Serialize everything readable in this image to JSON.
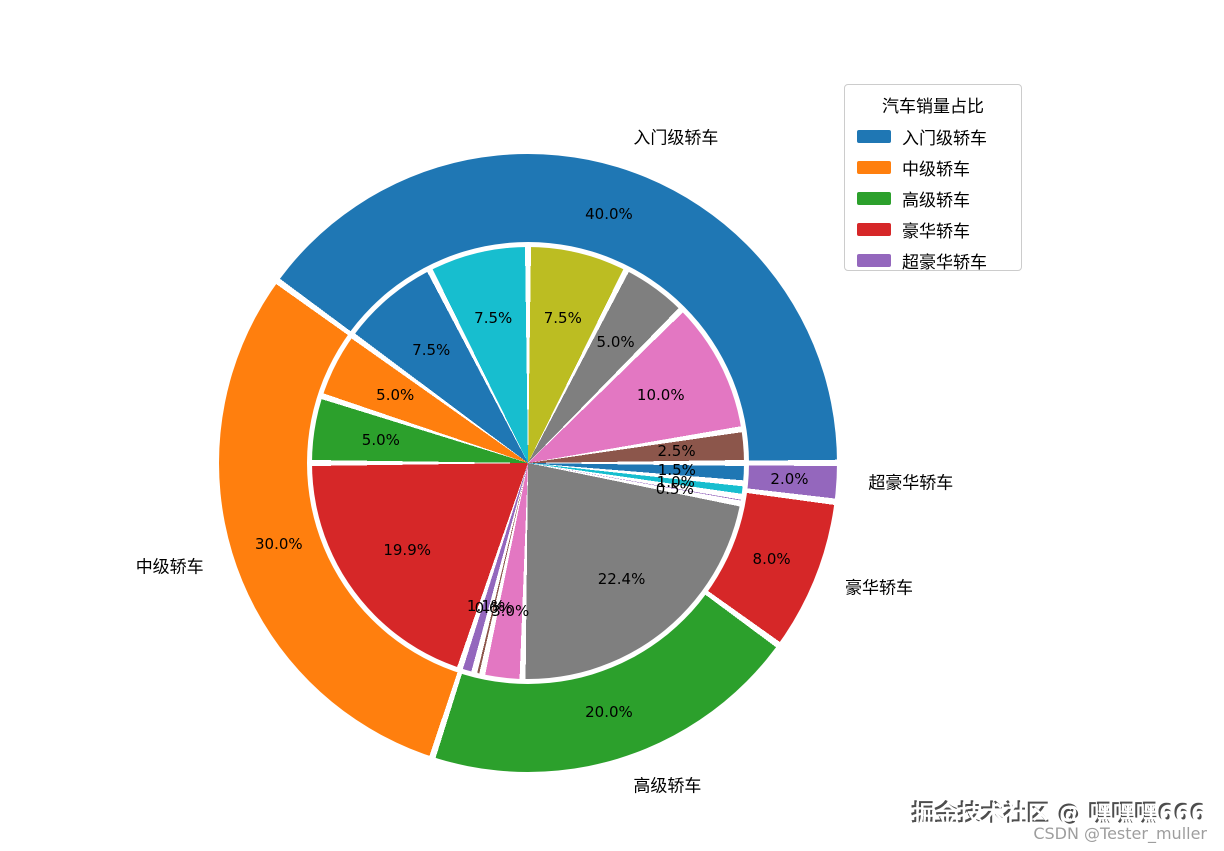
{
  "legend": {
    "title": "汽车销量占比",
    "entries": [
      {
        "label": "入门级轿车",
        "color": "#1f77b4"
      },
      {
        "label": "中级轿车",
        "color": "#ff7f0e"
      },
      {
        "label": "高级轿车",
        "color": "#2ca02c"
      },
      {
        "label": "豪华轿车",
        "color": "#d62728"
      },
      {
        "label": "超豪华轿车",
        "color": "#9467bd"
      }
    ]
  },
  "chart_data": {
    "type": "pie",
    "variant": "nested-donut",
    "direction": "counterclockwise",
    "start_angle_deg": 0,
    "legend_title": "汽车销量占比",
    "outer": {
      "categories": [
        "入门级轿车",
        "中级轿车",
        "高级轿车",
        "豪华轿车",
        "超豪华轿车"
      ],
      "values": [
        40.0,
        30.0,
        20.0,
        8.0,
        2.0
      ],
      "pct_labels": [
        "40.0%",
        "30.0%",
        "20.0%",
        "8.0%",
        "2.0%"
      ],
      "colors": [
        "#1f77b4",
        "#ff7f0e",
        "#2ca02c",
        "#d62728",
        "#9467bd"
      ]
    },
    "inner": {
      "arrangement": "wedges listed clockwise from 12 o'clock; ring sums to 100%",
      "wedges": [
        {
          "value": 7.5,
          "pct_label": "7.5%",
          "color": "#bcbd22"
        },
        {
          "value": 5.0,
          "pct_label": "5.0%",
          "color": "#7f7f7f"
        },
        {
          "value": 10.0,
          "pct_label": "10.0%",
          "color": "#e377c2"
        },
        {
          "value": 2.5,
          "pct_label": "2.5%",
          "color": "#8c564b"
        },
        {
          "value": 1.5,
          "pct_label": "1.5%",
          "color": "#1f77b4"
        },
        {
          "value": 1.0,
          "pct_label": "1.0%",
          "color": "#17becf"
        },
        {
          "value": 0.5,
          "pct_label": "0.5%",
          "color": "#9467bd"
        },
        {
          "value": 22.4,
          "pct_label": "22.4%",
          "color": "#7f7f7f"
        },
        {
          "value": 3.0,
          "pct_label": "3.0%",
          "color": "#e377c2"
        },
        {
          "value": 0.6,
          "pct_label": "0.6%",
          "color": "#8c564b"
        },
        {
          "value": 1.1,
          "pct_label": "1.1%",
          "color": "#9467bd"
        },
        {
          "value": 19.9,
          "pct_label": "19.9%",
          "color": "#d62728"
        },
        {
          "value": 5.0,
          "pct_label": "5.0%",
          "color": "#2ca02c"
        },
        {
          "value": 5.0,
          "pct_label": "5.0%",
          "color": "#ff7f0e"
        },
        {
          "value": 7.5,
          "pct_label": "7.5%",
          "color": "#1f77b4"
        },
        {
          "value": 7.5,
          "pct_label": "7.5%",
          "color": "#17becf"
        }
      ]
    }
  },
  "watermarks": {
    "primary": "掘金技术社区 @ 嘿嘿嘿666",
    "secondary": "CSDN @Tester_muller"
  }
}
